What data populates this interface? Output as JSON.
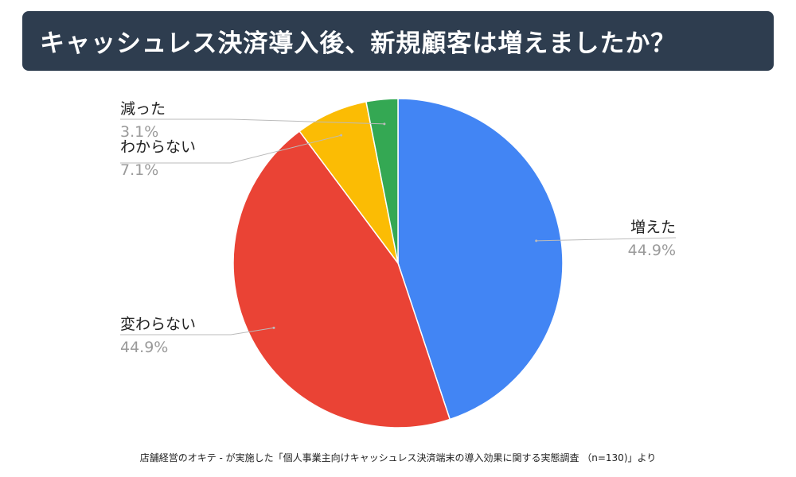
{
  "title": "キャッシュレス決済導入後、新規顧客は増えましたか？",
  "source_note": "店舗経営のオキテ - が実施した「個人事業主向けキャッシュレス決済端末の導入効果に関する実態調査 （n=130)」より",
  "chart_data": {
    "type": "pie",
    "title": "キャッシュレス決済導入後、新規顧客は増えましたか？",
    "slices": [
      {
        "label": "増えた",
        "value": 44.9,
        "display": "44.9%",
        "color": "#4285f4"
      },
      {
        "label": "変わらない",
        "value": 44.9,
        "display": "44.9%",
        "color": "#ea4335"
      },
      {
        "label": "わからない",
        "value": 7.1,
        "display": "7.1%",
        "color": "#fbbc04"
      },
      {
        "label": "減った",
        "value": 3.1,
        "display": "3.1%",
        "color": "#34a853"
      }
    ]
  }
}
